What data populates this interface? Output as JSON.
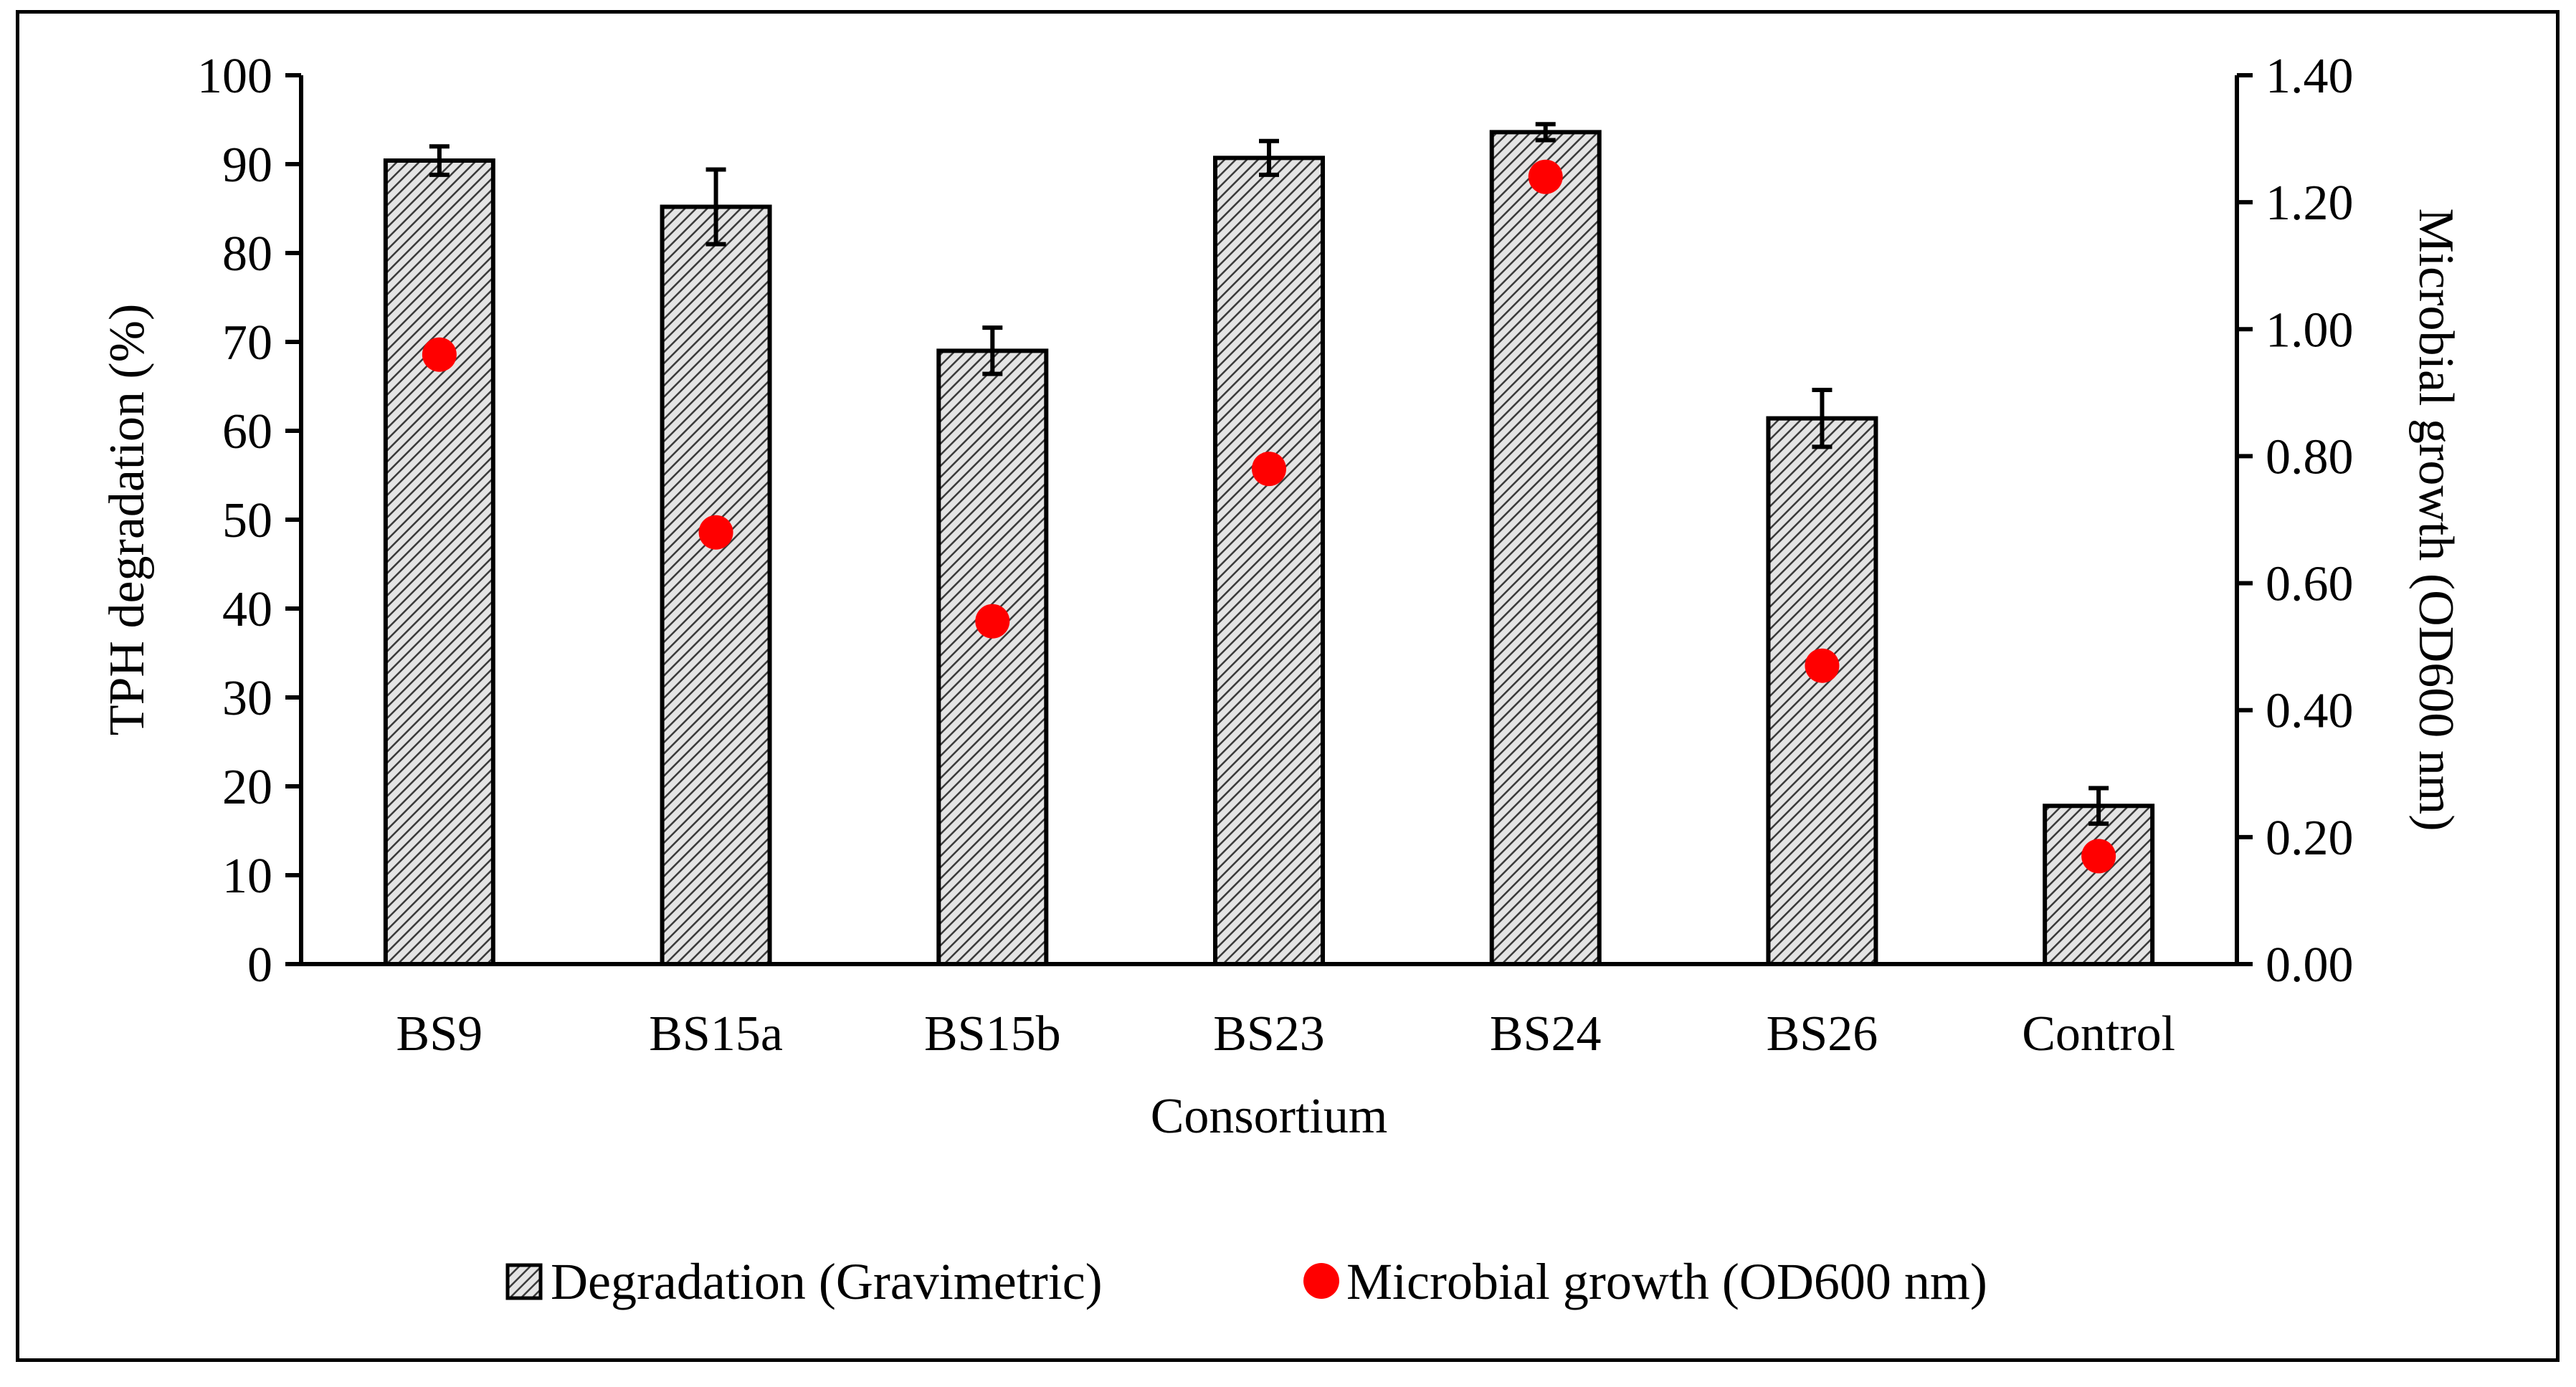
{
  "chart_data": {
    "type": "bar",
    "title": "",
    "xlabel": "Consortium",
    "ylabel": "TPH degradation (%)",
    "y2label": "Microbial growth (OD600 nm)",
    "categories": [
      "BS9",
      "BS15a",
      "BS15b",
      "BS23",
      "BS24",
      "BS26",
      "Control"
    ],
    "ylim": [
      0,
      100
    ],
    "y2lim": [
      0,
      1.4
    ],
    "yticks": [
      "0",
      "10",
      "20",
      "30",
      "40",
      "50",
      "60",
      "70",
      "80",
      "90",
      "100"
    ],
    "y2ticks": [
      "0.00",
      "0.20",
      "0.40",
      "0.60",
      "0.80",
      "1.00",
      "1.20",
      "1.40"
    ],
    "grid": false,
    "legend_position": "bottom",
    "series": [
      {
        "name": "Degradation (Gravimetric)",
        "kind": "bar",
        "axis": "left",
        "pattern": "diagonal hatch",
        "values": [
          90.4,
          85.2,
          69.0,
          90.7,
          93.6,
          61.4,
          17.8
        ],
        "errors": [
          1.6,
          4.2,
          2.6,
          1.9,
          0.9,
          3.2,
          2.0
        ]
      },
      {
        "name": "Microbial growth (OD600 nm)",
        "kind": "scatter",
        "axis": "right",
        "color": "#ff0000",
        "values": [
          0.96,
          0.68,
          0.54,
          0.78,
          1.24,
          0.47,
          0.17
        ]
      }
    ]
  }
}
